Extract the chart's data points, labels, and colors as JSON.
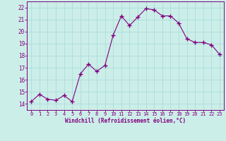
{
  "x": [
    0,
    1,
    2,
    3,
    4,
    5,
    6,
    7,
    8,
    9,
    10,
    11,
    12,
    13,
    14,
    15,
    16,
    17,
    18,
    19,
    20,
    21,
    22,
    23
  ],
  "y": [
    14.2,
    14.8,
    14.4,
    14.3,
    14.7,
    14.2,
    16.5,
    17.3,
    16.7,
    17.2,
    19.7,
    21.3,
    20.5,
    21.2,
    21.9,
    21.8,
    21.3,
    21.3,
    20.7,
    19.4,
    19.1,
    19.1,
    18.9,
    18.1
  ],
  "line_color": "#800080",
  "marker": "+",
  "marker_size": 4,
  "bg_color": "#cceee8",
  "grid_color": "#aadddd",
  "xlabel": "Windchill (Refroidissement éolien,°C)",
  "xlabel_color": "#800080",
  "tick_color": "#800080",
  "spine_color": "#800080",
  "ylim": [
    13.5,
    22.5
  ],
  "xlim": [
    -0.5,
    23.5
  ],
  "yticks": [
    14,
    15,
    16,
    17,
    18,
    19,
    20,
    21,
    22
  ],
  "xticks": [
    0,
    1,
    2,
    3,
    4,
    5,
    6,
    7,
    8,
    9,
    10,
    11,
    12,
    13,
    14,
    15,
    16,
    17,
    18,
    19,
    20,
    21,
    22,
    23
  ]
}
